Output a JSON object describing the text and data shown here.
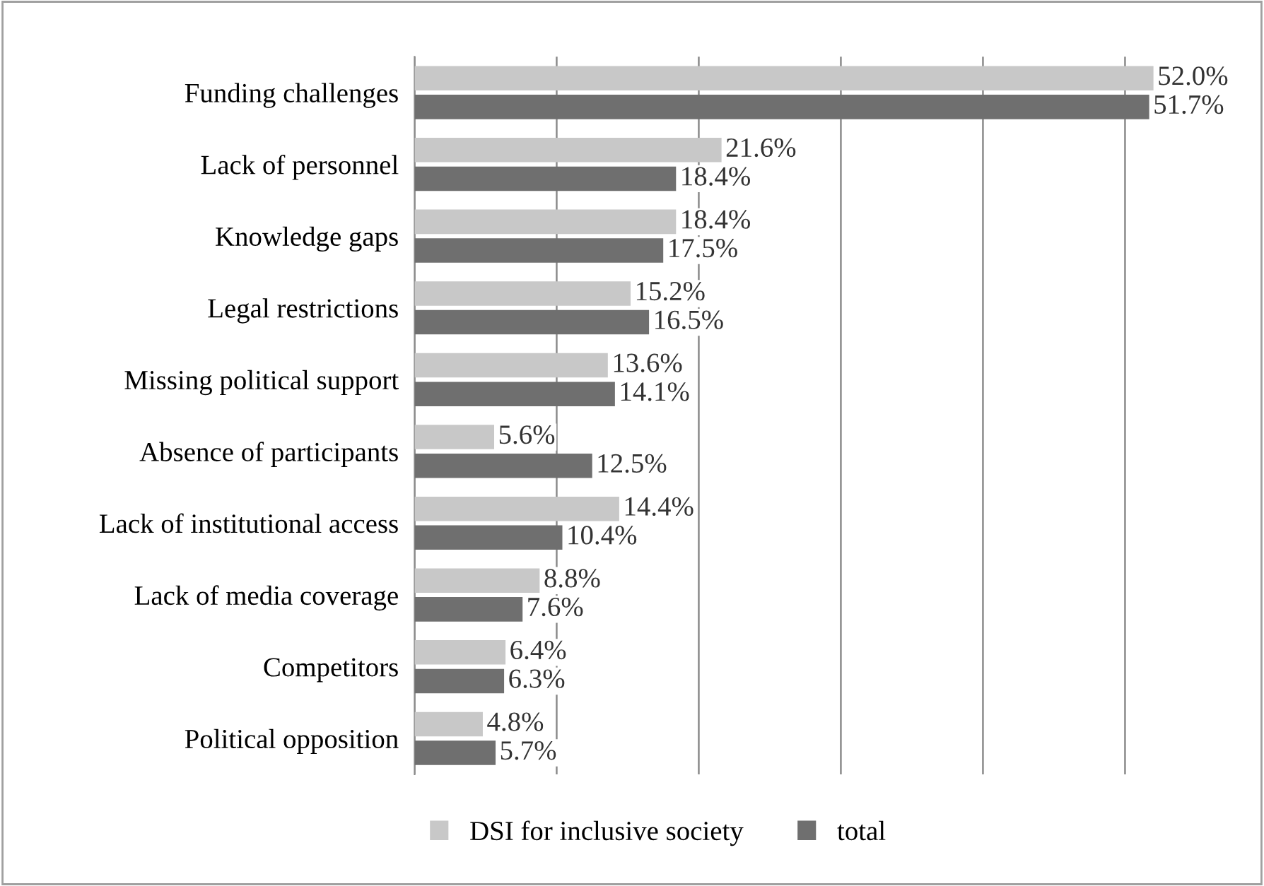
{
  "chart_data": {
    "type": "bar",
    "orientation": "horizontal",
    "categories": [
      "Funding challenges",
      "Lack of personnel",
      "Knowledge gaps",
      "Legal restrictions",
      "Missing political support",
      "Absence of participants",
      "Lack of institutional access",
      "Lack of media coverage",
      "Competitors",
      "Political opposition"
    ],
    "series": [
      {
        "name": "DSI for inclusive society",
        "color": "#c8c8c8",
        "values": [
          52.0,
          21.6,
          18.4,
          15.2,
          13.6,
          5.6,
          14.4,
          8.8,
          6.4,
          4.8
        ],
        "value_labels": [
          "52.0%",
          "21.6%",
          "18.4%",
          "15.2%",
          "13.6%",
          "5.6%",
          "14.4%",
          "8.8%",
          "6.4%",
          "4.8%"
        ]
      },
      {
        "name": "total",
        "color": "#6f6f6f",
        "values": [
          51.7,
          18.4,
          17.5,
          16.5,
          14.1,
          12.5,
          10.4,
          7.6,
          6.3,
          5.7
        ],
        "value_labels": [
          "51.7%",
          "18.4%",
          "17.5%",
          "16.5%",
          "14.1%",
          "12.5%",
          "10.4%",
          "7.6%",
          "6.3%",
          "5.7%"
        ]
      }
    ],
    "tick_labels": "y",
    "grid": "x",
    "legend": "bottom"
  }
}
